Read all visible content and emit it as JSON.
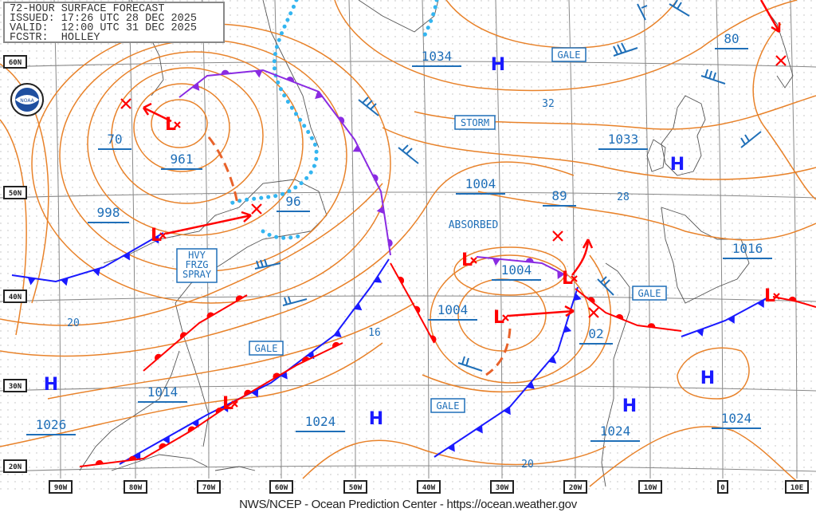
{
  "header": {
    "title": "72-HOUR SURFACE FORECAST",
    "issued": "ISSUED: 17:26 UTC 28 DEC 2025",
    "valid": "VALID:  12:00 UTC 31 DEC 2025",
    "forecaster": "FCSTR:  HOLLEY"
  },
  "logo": "NOAA",
  "credit": "NWS/NCEP - Ocean Prediction Center - https://ocean.weather.gov",
  "latitudes": [
    "60N",
    "50N",
    "40N",
    "30N",
    "20N"
  ],
  "longitudes": [
    "90W",
    "80W",
    "70W",
    "60W",
    "50W",
    "40W",
    "30W",
    "20W",
    "10W",
    "0",
    "10E"
  ],
  "pressure_labels": [
    "1034",
    "70",
    "961",
    "998",
    "96",
    "1004",
    "89",
    "1033",
    "80",
    "1016",
    "1004",
    "1004",
    "02",
    "1014",
    "1026",
    "1024",
    "1024",
    "1024"
  ],
  "isobar_labels": [
    "32",
    "28",
    "20",
    "16",
    "20"
  ],
  "warning_boxes": [
    "GALE",
    "STORM",
    "GALE",
    "GALE",
    "GALE"
  ],
  "freezing_spray": [
    "HVY",
    "FRZG",
    "SPRAY"
  ],
  "absorbed_label": "ABSORBED",
  "high_symbol": "H",
  "low_symbol": "L",
  "highs_count_label": "H",
  "colors": {
    "isobar": "#e8822a",
    "text": "#1f6fb8",
    "cold_front": "#1a1aff",
    "warm_front": "#ff0000",
    "occluded_front": "#8a2be2",
    "ice_edge": "#33b5f0",
    "grid": "#888888"
  }
}
